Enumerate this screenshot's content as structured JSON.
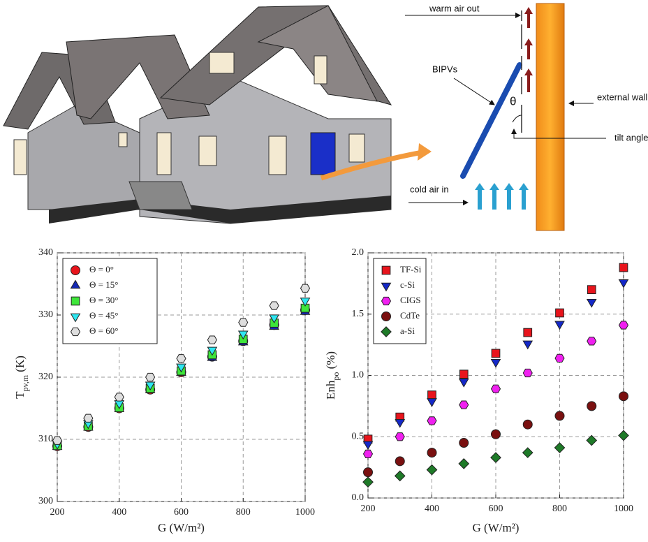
{
  "diagram": {
    "labels": {
      "warm_air": "warm air out",
      "bipv": "BIPVs",
      "theta": "θ",
      "wall": "external wall",
      "tilt": "tilt angle",
      "cold_air": "cold air in"
    }
  },
  "chart_data": [
    {
      "type": "scatter",
      "x_label": "G (W/m²)",
      "y_label": [
        "T",
        "pv,m",
        " (K)"
      ],
      "x": [
        200,
        300,
        400,
        500,
        600,
        700,
        800,
        900,
        1000
      ],
      "xlim": [
        200,
        1000
      ],
      "xticks": [
        200,
        400,
        600,
        800,
        1000
      ],
      "ylim": [
        300,
        340
      ],
      "yticks": [
        300,
        310,
        320,
        330,
        340
      ],
      "grid": true,
      "legend": "upper left",
      "series": [
        {
          "name": "Θ = 0°",
          "color": "#e8141c",
          "marker": "circle",
          "values": [
            308.9,
            312.0,
            315.0,
            318.0,
            320.8,
            323.3,
            325.8,
            328.4,
            330.8
          ]
        },
        {
          "name": "Θ = 15°",
          "color": "#1428b4",
          "marker": "triangle-up",
          "values": [
            308.8,
            311.9,
            314.9,
            317.9,
            320.7,
            323.1,
            325.6,
            328.1,
            330.5
          ]
        },
        {
          "name": "Θ = 30°",
          "color": "#3ee63a",
          "marker": "square",
          "values": [
            309.0,
            312.1,
            315.1,
            318.2,
            321.0,
            323.6,
            326.1,
            328.7,
            331.1
          ]
        },
        {
          "name": "Θ = 45°",
          "color": "#2ee6f0",
          "marker": "triangle-down",
          "values": [
            309.3,
            312.6,
            315.8,
            318.8,
            321.7,
            324.4,
            327.0,
            329.6,
            332.3
          ]
        },
        {
          "name": "Θ = 60°",
          "color": "#dedede",
          "marker": "hexagon",
          "values": [
            309.8,
            313.4,
            316.8,
            320.0,
            323.0,
            326.0,
            328.8,
            331.5,
            334.3
          ]
        }
      ]
    },
    {
      "type": "scatter",
      "x_label": "G (W/m²)",
      "y_label": [
        "Enh",
        "po",
        " (%)"
      ],
      "x": [
        200,
        300,
        400,
        500,
        600,
        700,
        800,
        900,
        1000
      ],
      "xlim": [
        200,
        1000
      ],
      "xticks": [
        200,
        400,
        600,
        800,
        1000
      ],
      "ylim": [
        0,
        2
      ],
      "yticks": [
        {
          "value": 0,
          "label": "0.0"
        },
        0.5,
        {
          "value": 1,
          "label": "1.0"
        },
        1.5,
        {
          "value": 2,
          "label": "2.0"
        }
      ],
      "grid": true,
      "legend": "upper left",
      "series": [
        {
          "name": "TF-Si",
          "color": "#e8141c",
          "marker": "square",
          "values": [
            0.48,
            0.66,
            0.84,
            1.01,
            1.18,
            1.35,
            1.51,
            1.7,
            1.88
          ]
        },
        {
          "name": "c-Si",
          "color": "#1428c8",
          "marker": "triangle-down",
          "values": [
            0.44,
            0.62,
            0.79,
            0.95,
            1.11,
            1.26,
            1.42,
            1.6,
            1.76
          ]
        },
        {
          "name": "CIGS",
          "color": "#f020f0",
          "marker": "hexagon",
          "values": [
            0.36,
            0.5,
            0.63,
            0.76,
            0.89,
            1.02,
            1.14,
            1.28,
            1.41
          ]
        },
        {
          "name": "CdTe",
          "color": "#7a1010",
          "marker": "circle",
          "values": [
            0.21,
            0.3,
            0.37,
            0.45,
            0.52,
            0.6,
            0.67,
            0.75,
            0.83
          ]
        },
        {
          "name": "a-Si",
          "color": "#1e7a28",
          "marker": "diamond",
          "values": [
            0.13,
            0.18,
            0.23,
            0.28,
            0.33,
            0.37,
            0.41,
            0.47,
            0.51
          ]
        }
      ]
    }
  ]
}
